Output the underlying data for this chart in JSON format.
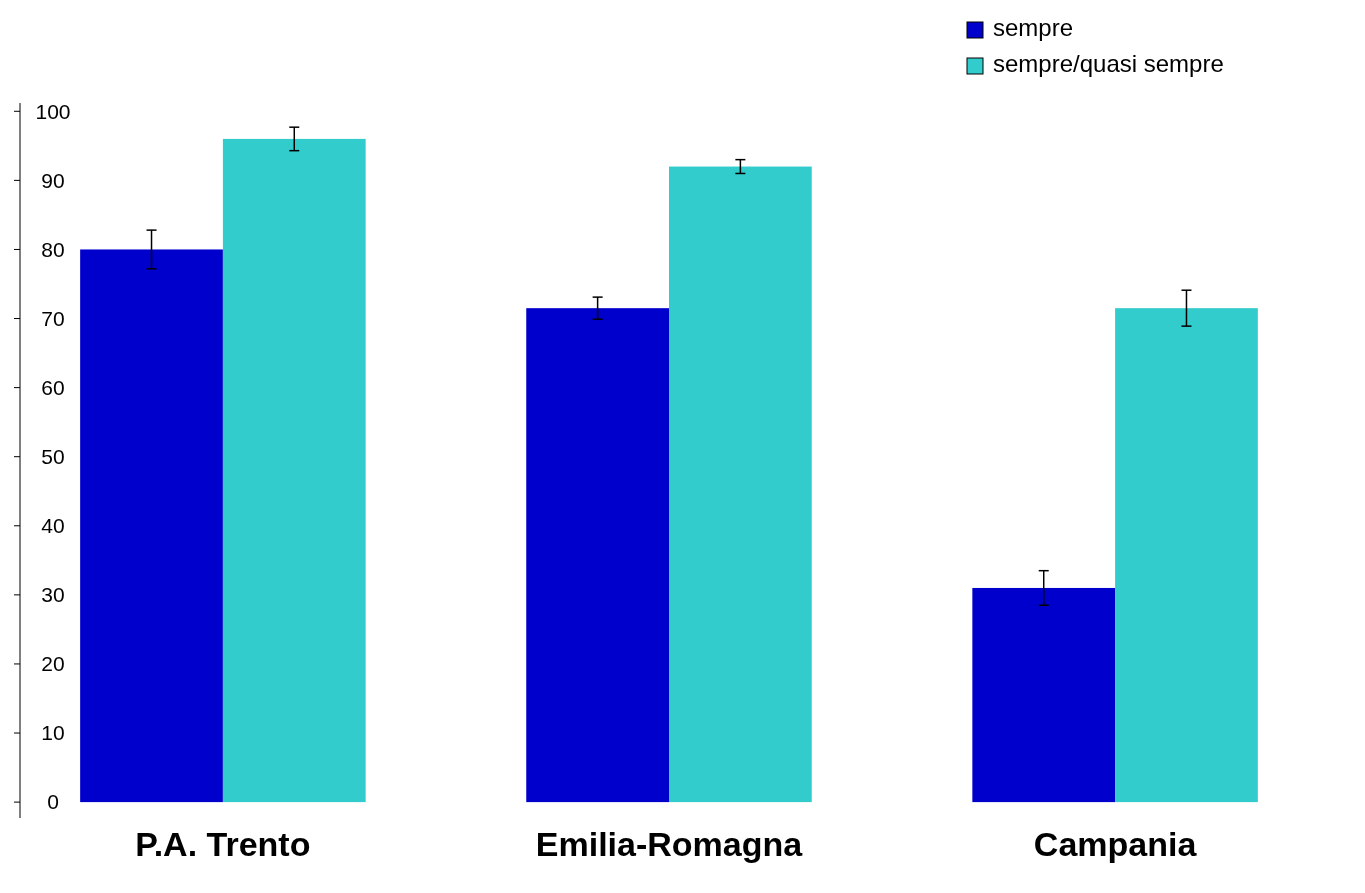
{
  "chart_data": {
    "type": "bar",
    "categories": [
      "P.A. Trento",
      "Emilia-Romagna",
      "Campania"
    ],
    "series": [
      {
        "name": "sempre",
        "color": "#0000cc",
        "values": [
          80,
          71.5,
          31
        ],
        "errors": [
          2.8,
          1.6,
          2.5
        ]
      },
      {
        "name": "sempre/quasi sempre",
        "color": "#33cccc",
        "values": [
          96,
          92,
          71.5
        ],
        "errors": [
          1.7,
          1,
          2.6
        ]
      }
    ],
    "ylim": [
      -2.3,
      101.2
    ],
    "yticks": [
      0,
      10,
      20,
      30,
      40,
      50,
      60,
      70,
      80,
      90,
      100
    ],
    "grid": false,
    "legend": "top right"
  }
}
